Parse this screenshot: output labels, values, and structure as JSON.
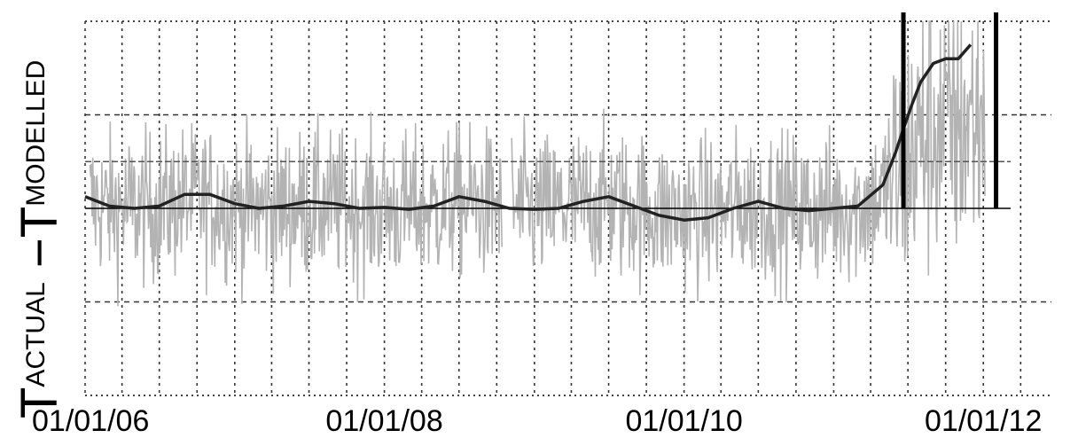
{
  "chart_data": {
    "type": "line",
    "title": "",
    "xlabel": "",
    "ylabel": {
      "main": "T",
      "sub1": "ACTUAL",
      "op": " −T",
      "sub2": "MODELLED"
    },
    "x_ticks": [
      "01/01/06",
      "01/01/08",
      "01/01/10",
      "01/01/12"
    ],
    "xlim": [
      "2006-01-01",
      "2012-06-15"
    ],
    "ylim": [
      -4,
      4
    ],
    "grid": true,
    "colors": {
      "residual": "#b3b3b3",
      "smoothed": "#222222",
      "threshold": "#000000"
    },
    "threshold_band": [
      -1,
      1
    ],
    "gap": [
      "2008-10-15",
      "2008-11-05"
    ],
    "smoothed": {
      "x": [
        "2006-01-01",
        "2006-03-01",
        "2006-05-01",
        "2006-07-01",
        "2006-09-01",
        "2006-11-01",
        "2007-01-01",
        "2007-03-01",
        "2007-05-01",
        "2007-07-01",
        "2007-09-01",
        "2007-11-01",
        "2008-01-01",
        "2008-03-01",
        "2008-05-01",
        "2008-07-01",
        "2008-09-01",
        "2008-11-01",
        "2009-01-01",
        "2009-03-01",
        "2009-05-01",
        "2009-07-01",
        "2009-09-01",
        "2009-11-01",
        "2010-01-01",
        "2010-03-01",
        "2010-05-01",
        "2010-07-01",
        "2010-09-01",
        "2010-11-01",
        "2011-01-01",
        "2011-03-01",
        "2011-05-01",
        "2011-06-01",
        "2011-06-20",
        "2011-07-10",
        "2011-08-01",
        "2011-09-01",
        "2011-10-01",
        "2011-11-01",
        "2011-12-01"
      ],
      "y": [
        0.25,
        0.05,
        0.0,
        0.05,
        0.3,
        0.3,
        0.1,
        0.0,
        0.05,
        0.15,
        0.1,
        0.0,
        0.02,
        -0.02,
        0.05,
        0.25,
        0.15,
        0.0,
        -0.02,
        0.0,
        0.15,
        0.25,
        0.05,
        -0.15,
        -0.25,
        -0.2,
        0.0,
        0.15,
        0.0,
        -0.05,
        0.0,
        0.05,
        0.5,
        1.2,
        1.7,
        2.2,
        2.7,
        3.1,
        3.2,
        3.2,
        3.5
      ]
    },
    "markers": [
      "2011-06-20",
      "2012-02-01"
    ]
  }
}
